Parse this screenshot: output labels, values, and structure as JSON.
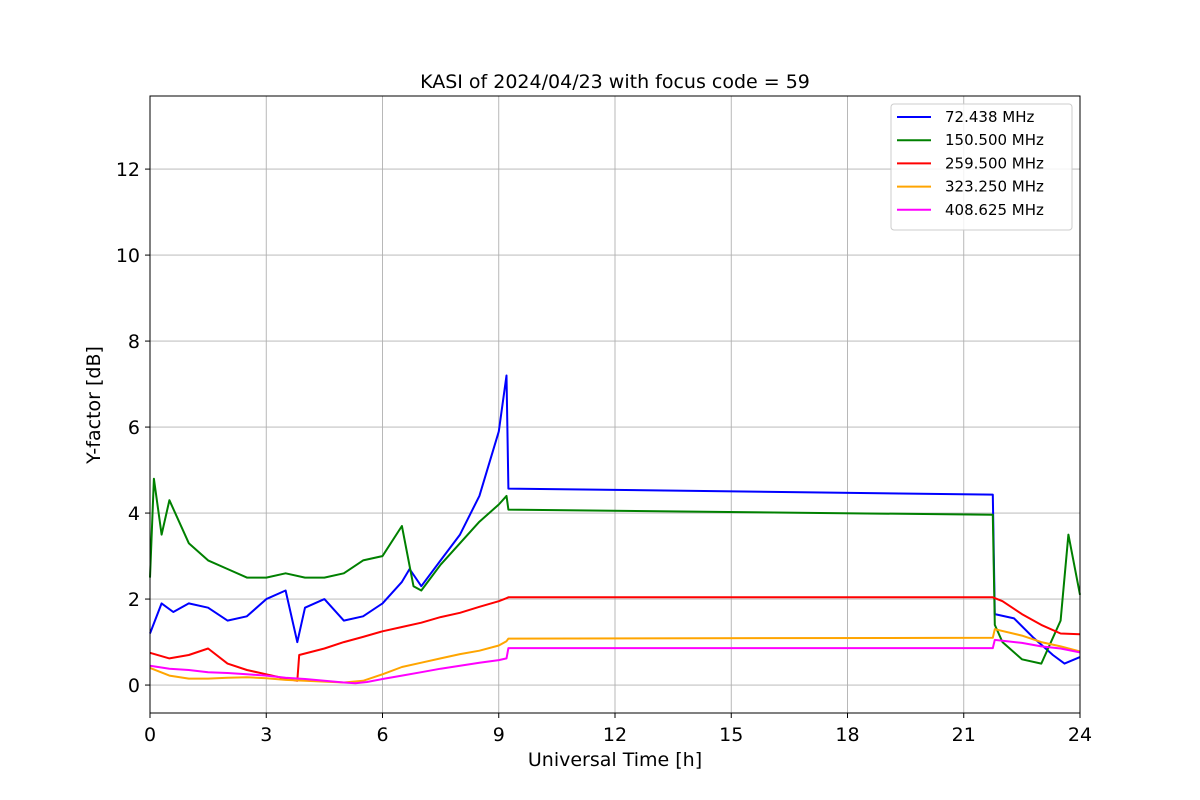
{
  "chart_data": {
    "type": "line",
    "title": "KASI of 2024/04/23 with focus code = 59",
    "xlabel": "Universal Time [h]",
    "ylabel": "Y-factor [dB]",
    "xlim": [
      0,
      24
    ],
    "ylim": [
      -0.65,
      13.7
    ],
    "x_ticks": [
      0,
      3,
      6,
      9,
      12,
      15,
      18,
      21,
      24
    ],
    "y_ticks": [
      0,
      2,
      4,
      6,
      8,
      10,
      12
    ],
    "grid": true,
    "legend_position": "top-right",
    "series": [
      {
        "name": " 72.438 MHz",
        "color": "#0000ff",
        "points": [
          [
            0,
            1.2
          ],
          [
            0.3,
            1.9
          ],
          [
            0.6,
            1.7
          ],
          [
            1,
            1.9
          ],
          [
            1.5,
            1.8
          ],
          [
            2,
            1.5
          ],
          [
            2.5,
            1.6
          ],
          [
            3,
            2.0
          ],
          [
            3.5,
            2.2
          ],
          [
            3.8,
            1.0
          ],
          [
            4,
            1.8
          ],
          [
            4.5,
            2.0
          ],
          [
            5,
            1.5
          ],
          [
            5.5,
            1.6
          ],
          [
            6,
            1.9
          ],
          [
            6.5,
            2.4
          ],
          [
            6.7,
            2.7
          ],
          [
            7,
            2.3
          ],
          [
            7.5,
            2.9
          ],
          [
            8,
            3.5
          ],
          [
            8.5,
            4.4
          ],
          [
            9,
            5.9
          ],
          [
            9.2,
            7.2
          ],
          [
            9.25,
            4.57
          ],
          [
            21.75,
            4.43
          ],
          [
            21.8,
            1.65
          ],
          [
            22.3,
            1.55
          ],
          [
            22.8,
            1.1
          ],
          [
            23.3,
            0.7
          ],
          [
            23.6,
            0.5
          ],
          [
            24,
            0.65
          ]
        ]
      },
      {
        "name": "150.500 MHz",
        "color": "#008000",
        "points": [
          [
            0,
            2.5
          ],
          [
            0.1,
            4.8
          ],
          [
            0.3,
            3.5
          ],
          [
            0.5,
            4.3
          ],
          [
            1,
            3.3
          ],
          [
            1.5,
            2.9
          ],
          [
            2,
            2.7
          ],
          [
            2.5,
            2.5
          ],
          [
            3,
            2.5
          ],
          [
            3.5,
            2.6
          ],
          [
            4,
            2.5
          ],
          [
            4.5,
            2.5
          ],
          [
            5,
            2.6
          ],
          [
            5.5,
            2.9
          ],
          [
            6,
            3.0
          ],
          [
            6.5,
            3.7
          ],
          [
            6.8,
            2.3
          ],
          [
            7,
            2.2
          ],
          [
            7.5,
            2.8
          ],
          [
            8,
            3.3
          ],
          [
            8.5,
            3.8
          ],
          [
            9,
            4.2
          ],
          [
            9.2,
            4.4
          ],
          [
            9.25,
            4.08
          ],
          [
            21.75,
            3.96
          ],
          [
            21.8,
            1.4
          ],
          [
            22,
            1.0
          ],
          [
            22.5,
            0.6
          ],
          [
            23,
            0.5
          ],
          [
            23.5,
            1.5
          ],
          [
            23.7,
            3.5
          ],
          [
            24,
            2.1
          ]
        ]
      },
      {
        "name": "259.500 MHz",
        "color": "#ff0000",
        "points": [
          [
            0,
            0.75
          ],
          [
            0.5,
            0.62
          ],
          [
            1,
            0.7
          ],
          [
            1.5,
            0.85
          ],
          [
            2,
            0.5
          ],
          [
            2.5,
            0.35
          ],
          [
            3,
            0.25
          ],
          [
            3.5,
            0.15
          ],
          [
            3.8,
            0.1
          ],
          [
            3.85,
            0.7
          ],
          [
            4.5,
            0.85
          ],
          [
            5,
            1.0
          ],
          [
            5.5,
            1.12
          ],
          [
            6,
            1.25
          ],
          [
            6.5,
            1.35
          ],
          [
            7,
            1.45
          ],
          [
            7.5,
            1.58
          ],
          [
            8,
            1.68
          ],
          [
            8.5,
            1.82
          ],
          [
            9,
            1.95
          ],
          [
            9.2,
            2.02
          ],
          [
            9.25,
            2.04
          ],
          [
            21.75,
            2.04
          ],
          [
            22,
            1.95
          ],
          [
            22.5,
            1.65
          ],
          [
            23,
            1.4
          ],
          [
            23.5,
            1.2
          ],
          [
            24,
            1.18
          ]
        ]
      },
      {
        "name": "323.250 MHz",
        "color": "#ffa500",
        "points": [
          [
            0,
            0.4
          ],
          [
            0.5,
            0.22
          ],
          [
            1,
            0.15
          ],
          [
            1.5,
            0.15
          ],
          [
            2,
            0.17
          ],
          [
            2.5,
            0.18
          ],
          [
            3,
            0.16
          ],
          [
            3.5,
            0.12
          ],
          [
            4,
            0.1
          ],
          [
            4.5,
            0.08
          ],
          [
            5,
            0.06
          ],
          [
            5.5,
            0.1
          ],
          [
            6,
            0.25
          ],
          [
            6.5,
            0.42
          ],
          [
            7,
            0.52
          ],
          [
            7.5,
            0.62
          ],
          [
            8,
            0.72
          ],
          [
            8.5,
            0.8
          ],
          [
            9,
            0.92
          ],
          [
            9.2,
            1.02
          ],
          [
            9.25,
            1.08
          ],
          [
            21.75,
            1.1
          ],
          [
            21.8,
            1.3
          ],
          [
            22.5,
            1.15
          ],
          [
            23,
            1.0
          ],
          [
            23.5,
            0.9
          ],
          [
            24,
            0.78
          ]
        ]
      },
      {
        "name": "408.625 MHz",
        "color": "#ff00ff",
        "points": [
          [
            0,
            0.45
          ],
          [
            0.5,
            0.38
          ],
          [
            1,
            0.35
          ],
          [
            1.5,
            0.3
          ],
          [
            2,
            0.28
          ],
          [
            2.5,
            0.25
          ],
          [
            3,
            0.22
          ],
          [
            3.5,
            0.17
          ],
          [
            4,
            0.14
          ],
          [
            4.5,
            0.1
          ],
          [
            5,
            0.06
          ],
          [
            5.3,
            0.04
          ],
          [
            5.6,
            0.07
          ],
          [
            6,
            0.14
          ],
          [
            6.5,
            0.22
          ],
          [
            7,
            0.3
          ],
          [
            7.5,
            0.38
          ],
          [
            8,
            0.45
          ],
          [
            8.5,
            0.52
          ],
          [
            9,
            0.58
          ],
          [
            9.2,
            0.62
          ],
          [
            9.25,
            0.86
          ],
          [
            21.75,
            0.86
          ],
          [
            21.8,
            1.05
          ],
          [
            22.5,
            0.98
          ],
          [
            23,
            0.9
          ],
          [
            23.5,
            0.85
          ],
          [
            24,
            0.76
          ]
        ]
      }
    ]
  }
}
